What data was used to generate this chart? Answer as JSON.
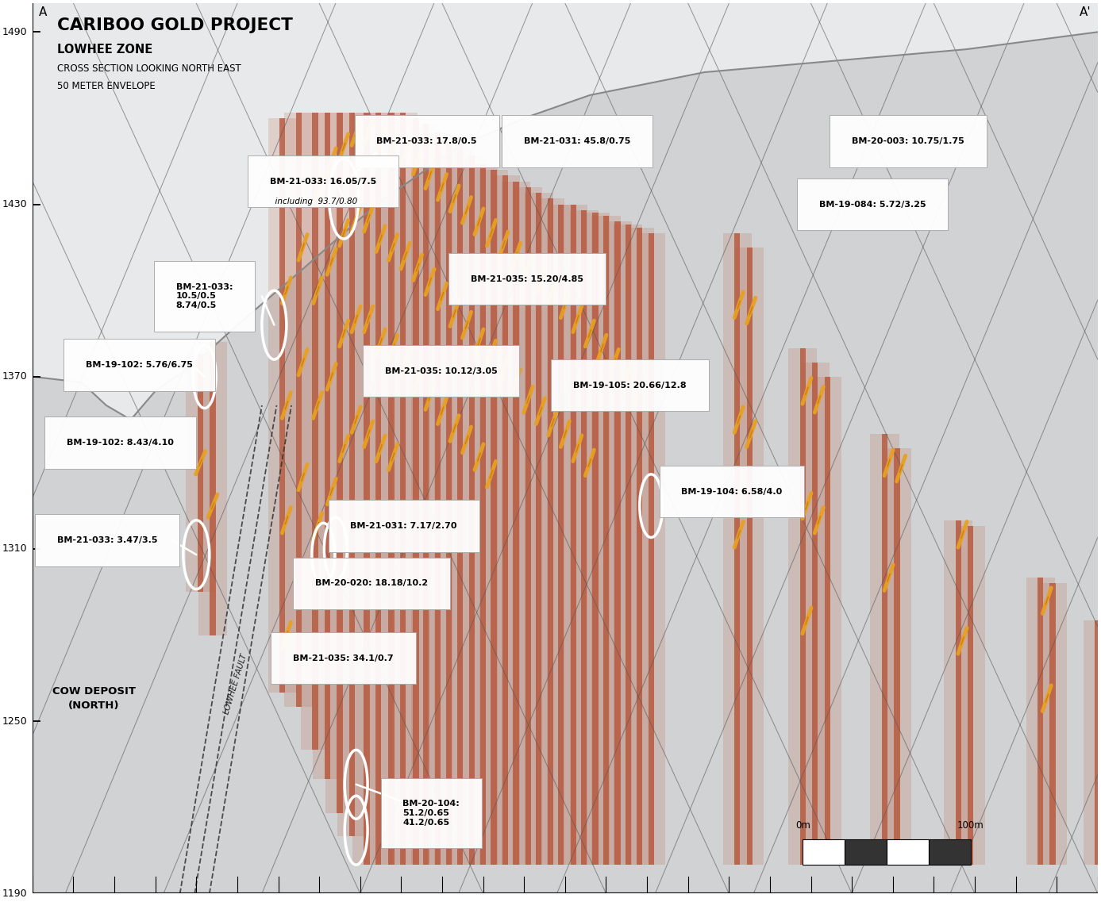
{
  "title": "CARIBOO GOLD PROJECT",
  "subtitle": "LOWHEE ZONE",
  "subtitle2": "CROSS SECTION LOOKING NORTH EAST",
  "subtitle3": "50 METER ENVELOPE",
  "label_a": "A",
  "label_a_prime": "A'",
  "bg_outside": "#ffffff",
  "bg_geo": "#d0d2d3",
  "bg_upper": "#e8e9ea",
  "y_min": 1190,
  "y_max": 1500,
  "x_min": 0,
  "x_max": 1300,
  "yticks": [
    1490,
    1430,
    1370,
    1310,
    1250,
    1190
  ],
  "rust_color": "#b85c42",
  "gold_color": "#e8a020",
  "fault_color": "#555555",
  "lowhee_fault_color": "#333333"
}
